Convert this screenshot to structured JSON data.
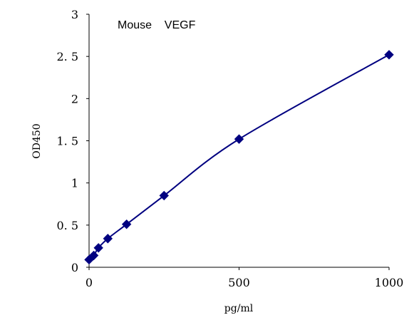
{
  "chart_data": {
    "type": "scatter",
    "title": "Mouse    VEGF",
    "xlabel": "pg/ml",
    "ylabel": "OD450",
    "xlim": [
      0,
      1000
    ],
    "ylim": [
      0,
      3
    ],
    "x_ticks": [
      "0",
      "500",
      "1000"
    ],
    "y_ticks": [
      "0",
      "0. 5",
      "1",
      "1. 5",
      "2",
      "2. 5",
      "3"
    ],
    "grid": false,
    "legend": "none",
    "marker": "diamond",
    "smooth_line": true,
    "colors": {
      "series": "#000080",
      "axis": "#000000",
      "text": "#000000"
    },
    "series": [
      {
        "x": [
          0,
          15.6,
          31.25,
          62.5,
          125,
          250,
          500,
          1000
        ],
        "y": [
          0.09,
          0.14,
          0.23,
          0.34,
          0.51,
          0.85,
          1.52,
          2.52
        ]
      }
    ]
  }
}
